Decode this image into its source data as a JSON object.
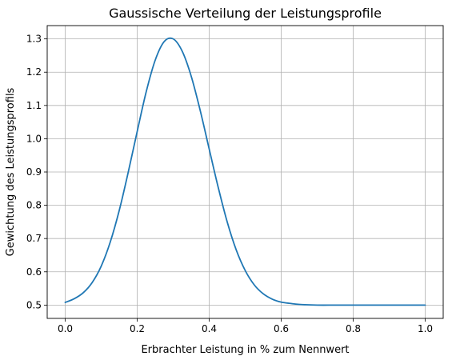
{
  "chart_data": {
    "type": "line",
    "title": "Gaussische Verteilung der Leistungsprofile",
    "xlabel": "Erbrachter Leistung in % zum Nennwert",
    "ylabel": "Gewichtung des Leistungsprofils",
    "xlim": [
      -0.05,
      1.05
    ],
    "ylim": [
      0.46,
      1.34
    ],
    "x_ticks": [
      0.0,
      0.2,
      0.4,
      0.6,
      0.8,
      1.0
    ],
    "x_tick_labels": [
      "0.0",
      "0.2",
      "0.4",
      "0.6",
      "0.8",
      "1.0"
    ],
    "y_ticks": [
      0.5,
      0.6,
      0.7,
      0.8,
      0.9,
      1.0,
      1.1,
      1.2,
      1.3
    ],
    "y_tick_labels": [
      "0.5",
      "0.6",
      "0.7",
      "0.8",
      "0.9",
      "1.0",
      "1.1",
      "1.2",
      "1.3"
    ],
    "grid": true,
    "series": [
      {
        "color": "#1f77b4",
        "x": [
          0.0,
          0.025,
          0.05,
          0.075,
          0.1,
          0.125,
          0.15,
          0.175,
          0.2,
          0.225,
          0.25,
          0.275,
          0.3,
          0.325,
          0.35,
          0.375,
          0.4,
          0.425,
          0.45,
          0.475,
          0.5,
          0.525,
          0.55,
          0.575,
          0.6,
          0.625,
          0.65,
          0.7,
          0.75,
          0.8,
          0.85,
          0.9,
          0.95,
          1.0
        ],
        "y": [
          0.508,
          0.519,
          0.537,
          0.568,
          0.617,
          0.689,
          0.784,
          0.899,
          1.022,
          1.141,
          1.236,
          1.292,
          1.3,
          1.263,
          1.188,
          1.085,
          0.969,
          0.854,
          0.75,
          0.666,
          0.604,
          0.561,
          0.534,
          0.518,
          0.509,
          0.505,
          0.502,
          0.5,
          0.5,
          0.5,
          0.5,
          0.5,
          0.5,
          0.5
        ]
      }
    ]
  }
}
